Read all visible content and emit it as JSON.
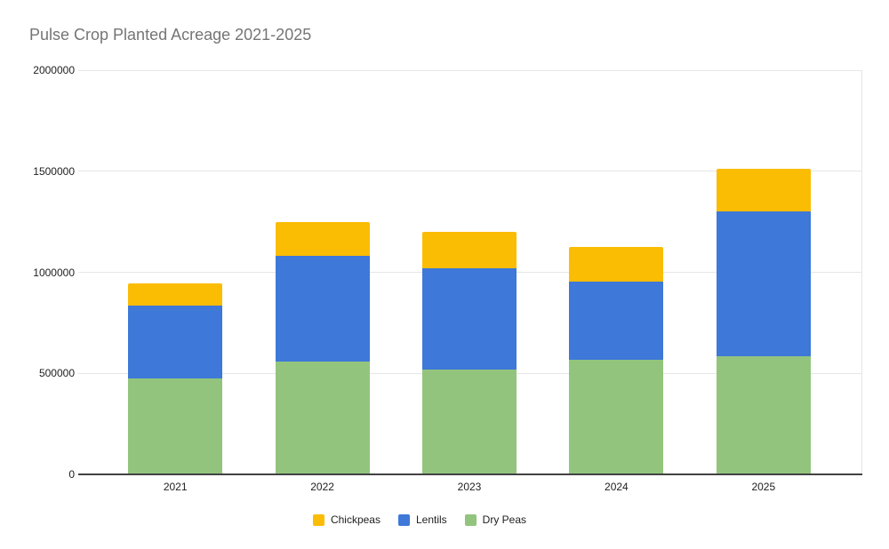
{
  "title": "Pulse Crop Planted Acreage 2021-2025",
  "title_color": "#757575",
  "axis": {
    "text_color": "#212121",
    "gridline_color": "#e6e6e6",
    "baseline_color": "#424242"
  },
  "chart_data": {
    "type": "bar",
    "stacked": true,
    "title": "Pulse Crop Planted Acreage 2021-2025",
    "categories": [
      "2021",
      "2022",
      "2023",
      "2024",
      "2025"
    ],
    "series": [
      {
        "name": "Chickpeas",
        "color": "#FBBC04",
        "values": [
          110000,
          170000,
          180000,
          170000,
          210000
        ]
      },
      {
        "name": "Lentils",
        "color": "#3E78D8",
        "values": [
          360000,
          520000,
          500000,
          390000,
          715000
        ]
      },
      {
        "name": "Dry Peas",
        "color": "#93C47D",
        "values": [
          475000,
          560000,
          520000,
          565000,
          585000
        ]
      }
    ],
    "stack_totals": [
      945000,
      1250000,
      1200000,
      1125000,
      1510000
    ],
    "xlabel": "",
    "ylabel": "",
    "ylim": [
      0,
      2000000
    ],
    "ytick_interval": 500000,
    "ytick_labels": [
      "0",
      "500000",
      "1000000",
      "1500000",
      "2000000"
    ],
    "grid": true,
    "legend_position": "bottom",
    "legend_order": [
      "Chickpeas",
      "Lentils",
      "Dry Peas"
    ]
  }
}
